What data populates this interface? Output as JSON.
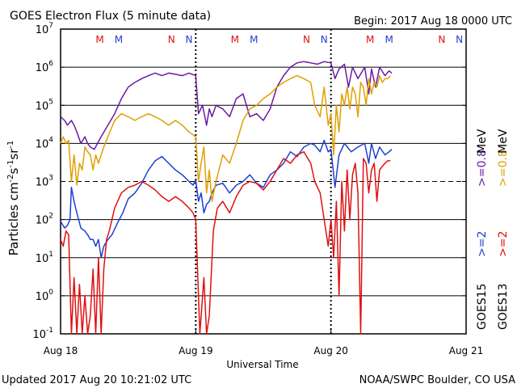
{
  "chart_data": {
    "type": "line",
    "title": "GOES Electron Flux (5 minute data)",
    "begin": "Begin: 2017 Aug 18 0000 UTC",
    "xlabel": "Universal Time",
    "ylabel_parts": [
      "Particles cm",
      "-2",
      "s",
      "-1",
      "sr",
      "-1"
    ],
    "updated": "Updated 2017 Aug 20 10:21:02 UTC",
    "credit": "NOAA/SWPC Boulder, CO USA",
    "x_ticks": [
      "Aug 18",
      "Aug 19",
      "Aug 20",
      "Aug 21"
    ],
    "y_scale": "log",
    "y_range_exponent": [
      -1,
      7
    ],
    "y_tick_exponents": [
      -1,
      0,
      1,
      2,
      3,
      4,
      5,
      6,
      7
    ],
    "threshold_exponent": 3,
    "y_tick_base": "10",
    "x_range_days": [
      0,
      3
    ],
    "colors": {
      "ge2_15": "#1f3fd0",
      "ge2_13": "#e01010",
      "ge08_15": "#6a1aa0",
      "ge08_13": "#e0a000"
    },
    "markers": {
      "labels": [
        "M",
        "M",
        "N",
        "N",
        "M",
        "M",
        "N",
        "N",
        "M",
        "M",
        "N",
        "N"
      ],
      "x_days": [
        0.29,
        0.43,
        0.82,
        0.95,
        1.29,
        1.43,
        1.82,
        1.95,
        2.29,
        2.43,
        2.82,
        2.95
      ],
      "colors": [
        "#e01010",
        "#1f3fd0",
        "#e01010",
        "#1f3fd0",
        "#e01010",
        "#1f3fd0",
        "#e01010",
        "#1f3fd0",
        "#e01010",
        "#1f3fd0",
        "#e01010",
        "#1f3fd0"
      ]
    },
    "legend": {
      "sat_goes15": "GOES15",
      "sat_goes13": "GOES13",
      "ge2_15": ">=2",
      "ge2_13": ">=2",
      "ge08_15": ">=0.8",
      "ge08_13": ">=0.8",
      "unit": "MeV"
    },
    "series": [
      {
        "key": "ge2_15",
        "x": [
          0.0,
          0.03,
          0.05,
          0.07,
          0.08,
          0.1,
          0.12,
          0.15,
          0.18,
          0.2,
          0.22,
          0.24,
          0.26,
          0.28,
          0.3,
          0.32,
          0.35,
          0.38,
          0.42,
          0.46,
          0.5,
          0.55,
          0.6,
          0.65,
          0.7,
          0.75,
          0.8,
          0.85,
          0.9,
          0.95,
          0.98,
          1.0,
          1.02,
          1.04,
          1.06,
          1.08,
          1.1,
          1.12,
          1.15,
          1.2,
          1.25,
          1.3,
          1.35,
          1.4,
          1.45,
          1.5,
          1.55,
          1.6,
          1.65,
          1.7,
          1.75,
          1.8,
          1.85,
          1.88,
          1.92,
          1.95,
          1.98,
          2.0,
          2.03,
          2.06,
          2.1,
          2.15,
          2.2,
          2.25,
          2.28,
          2.3,
          2.33,
          2.36,
          2.4,
          2.43,
          2.45
        ],
        "y": [
          90,
          60,
          70,
          100,
          700,
          300,
          150,
          60,
          50,
          40,
          30,
          30,
          20,
          30,
          10,
          20,
          30,
          40,
          80,
          150,
          350,
          500,
          900,
          2000,
          3500,
          4500,
          3000,
          2000,
          1500,
          1000,
          800,
          1100,
          300,
          500,
          150,
          250,
          300,
          500,
          800,
          900,
          500,
          800,
          1000,
          1500,
          900,
          700,
          1500,
          2000,
          3000,
          6000,
          4500,
          8000,
          10000,
          9000,
          6000,
          12000,
          6000,
          7000,
          700,
          5000,
          10000,
          6000,
          8000,
          10000,
          3000,
          10000,
          4000,
          8000,
          5000,
          6000,
          7000
        ]
      },
      {
        "key": "ge2_13",
        "x": [
          0.0,
          0.02,
          0.04,
          0.06,
          0.08,
          0.1,
          0.12,
          0.14,
          0.16,
          0.18,
          0.2,
          0.22,
          0.24,
          0.26,
          0.28,
          0.3,
          0.32,
          0.34,
          0.36,
          0.38,
          0.4,
          0.45,
          0.5,
          0.55,
          0.6,
          0.65,
          0.7,
          0.75,
          0.8,
          0.85,
          0.9,
          0.95,
          0.98,
          1.0,
          1.03,
          1.06,
          1.08,
          1.1,
          1.13,
          1.16,
          1.2,
          1.25,
          1.3,
          1.35,
          1.4,
          1.45,
          1.5,
          1.55,
          1.6,
          1.65,
          1.7,
          1.75,
          1.8,
          1.85,
          1.88,
          1.92,
          1.95,
          1.98,
          2.0,
          2.02,
          2.04,
          2.06,
          2.08,
          2.1,
          2.12,
          2.14,
          2.16,
          2.18,
          2.2,
          2.22,
          2.24,
          2.26,
          2.28,
          2.3,
          2.32,
          2.34,
          2.36,
          2.38,
          2.4,
          2.42,
          2.44
        ],
        "y": [
          30,
          20,
          50,
          40,
          0.1,
          3,
          0.1,
          2,
          0.1,
          1,
          0.1,
          0.3,
          5,
          0.1,
          10,
          0.1,
          5,
          30,
          50,
          100,
          200,
          500,
          700,
          800,
          1000,
          800,
          600,
          400,
          300,
          400,
          300,
          200,
          150,
          100,
          0.1,
          3,
          0.1,
          0.3,
          50,
          200,
          300,
          150,
          400,
          800,
          1000,
          900,
          600,
          1000,
          2000,
          4000,
          3000,
          5000,
          6000,
          3000,
          1000,
          500,
          100,
          20,
          100,
          10,
          300,
          1,
          1000,
          50,
          2000,
          100,
          1500,
          3000,
          500,
          0.1,
          4000,
          3000,
          500,
          2000,
          3000,
          300,
          2000,
          2500,
          3000,
          3500,
          3500
        ]
      },
      {
        "key": "ge08_15",
        "x": [
          0.0,
          0.03,
          0.05,
          0.08,
          0.1,
          0.12,
          0.15,
          0.18,
          0.2,
          0.22,
          0.25,
          0.3,
          0.35,
          0.4,
          0.45,
          0.5,
          0.55,
          0.6,
          0.65,
          0.7,
          0.75,
          0.8,
          0.85,
          0.9,
          0.95,
          1.0,
          1.02,
          1.05,
          1.08,
          1.1,
          1.12,
          1.15,
          1.2,
          1.25,
          1.3,
          1.35,
          1.4,
          1.45,
          1.5,
          1.55,
          1.6,
          1.65,
          1.7,
          1.75,
          1.8,
          1.85,
          1.9,
          1.95,
          2.0,
          2.03,
          2.06,
          2.1,
          2.13,
          2.16,
          2.2,
          2.25,
          2.28,
          2.3,
          2.33,
          2.36,
          2.4,
          2.43,
          2.45
        ],
        "y": [
          50000,
          40000,
          30000,
          40000,
          30000,
          20000,
          10000,
          15000,
          10000,
          8000,
          7000,
          15000,
          30000,
          60000,
          150000,
          300000,
          400000,
          500000,
          600000,
          700000,
          600000,
          700000,
          650000,
          600000,
          700000,
          600000,
          60000,
          100000,
          30000,
          80000,
          50000,
          100000,
          80000,
          50000,
          150000,
          200000,
          50000,
          60000,
          40000,
          80000,
          300000,
          600000,
          1000000,
          1300000,
          1400000,
          1300000,
          1200000,
          1400000,
          1300000,
          500000,
          900000,
          1200000,
          300000,
          1000000,
          500000,
          1000000,
          200000,
          900000,
          300000,
          1000000,
          600000,
          800000,
          700000
        ]
      },
      {
        "key": "ge08_13",
        "x": [
          0.0,
          0.02,
          0.04,
          0.06,
          0.08,
          0.1,
          0.12,
          0.14,
          0.16,
          0.18,
          0.2,
          0.22,
          0.24,
          0.26,
          0.28,
          0.3,
          0.32,
          0.35,
          0.4,
          0.45,
          0.5,
          0.55,
          0.6,
          0.65,
          0.7,
          0.75,
          0.8,
          0.85,
          0.9,
          0.95,
          1.0,
          1.02,
          1.04,
          1.06,
          1.08,
          1.1,
          1.12,
          1.15,
          1.2,
          1.25,
          1.3,
          1.35,
          1.4,
          1.45,
          1.5,
          1.55,
          1.6,
          1.65,
          1.7,
          1.75,
          1.8,
          1.85,
          1.88,
          1.92,
          1.95,
          1.98,
          2.0,
          2.02,
          2.04,
          2.06,
          2.08,
          2.1,
          2.12,
          2.14,
          2.16,
          2.18,
          2.2,
          2.22,
          2.24,
          2.26,
          2.28,
          2.3,
          2.32,
          2.34,
          2.36,
          2.38,
          2.4,
          2.42,
          2.44
        ],
        "y": [
          10000,
          15000,
          10000,
          12000,
          1000,
          5000,
          800,
          3000,
          2000,
          8000,
          6000,
          5000,
          2000,
          5000,
          3000,
          5000,
          8000,
          15000,
          40000,
          60000,
          50000,
          40000,
          50000,
          60000,
          50000,
          40000,
          30000,
          40000,
          30000,
          20000,
          15000,
          1000,
          3000,
          8000,
          500,
          2000,
          300,
          1000,
          5000,
          3000,
          10000,
          40000,
          80000,
          100000,
          150000,
          200000,
          300000,
          400000,
          500000,
          600000,
          500000,
          400000,
          100000,
          50000,
          300000,
          30000,
          60000,
          5000,
          100000,
          20000,
          200000,
          100000,
          300000,
          80000,
          300000,
          200000,
          50000,
          400000,
          300000,
          100000,
          500000,
          200000,
          400000,
          300000,
          600000,
          400000,
          500000,
          500000,
          600000
        ]
      }
    ]
  }
}
